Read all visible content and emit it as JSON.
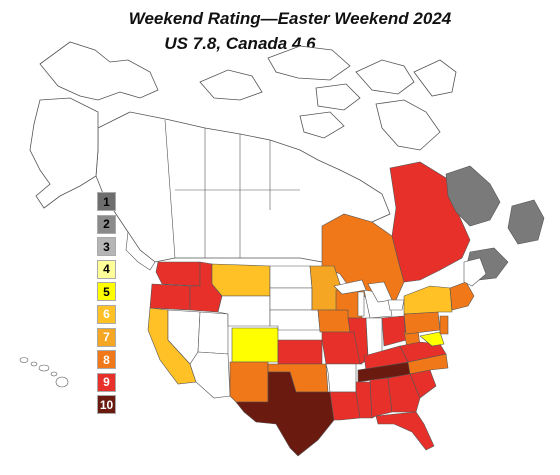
{
  "title": "Weekend Rating—Easter Weekend 2024",
  "subtitle": "US 7.8, Canada 4.6",
  "legend": [
    {
      "label": "1",
      "color": "#6e6e6e",
      "text": "#000000"
    },
    {
      "label": "2",
      "color": "#8a8a8a",
      "text": "#000000"
    },
    {
      "label": "3",
      "color": "#b5b5b5",
      "text": "#000000"
    },
    {
      "label": "4",
      "color": "#ffff99",
      "text": "#000000"
    },
    {
      "label": "5",
      "color": "#ffff00",
      "text": "#000000"
    },
    {
      "label": "6",
      "color": "#ffc125",
      "text": "#ffffff"
    },
    {
      "label": "7",
      "color": "#f5a623",
      "text": "#ffffff"
    },
    {
      "label": "8",
      "color": "#f07818",
      "text": "#ffffff"
    },
    {
      "label": "9",
      "color": "#e8302a",
      "text": "#ffffff"
    },
    {
      "label": "10",
      "color": "#6b1a10",
      "text": "#ffffff"
    }
  ]
}
